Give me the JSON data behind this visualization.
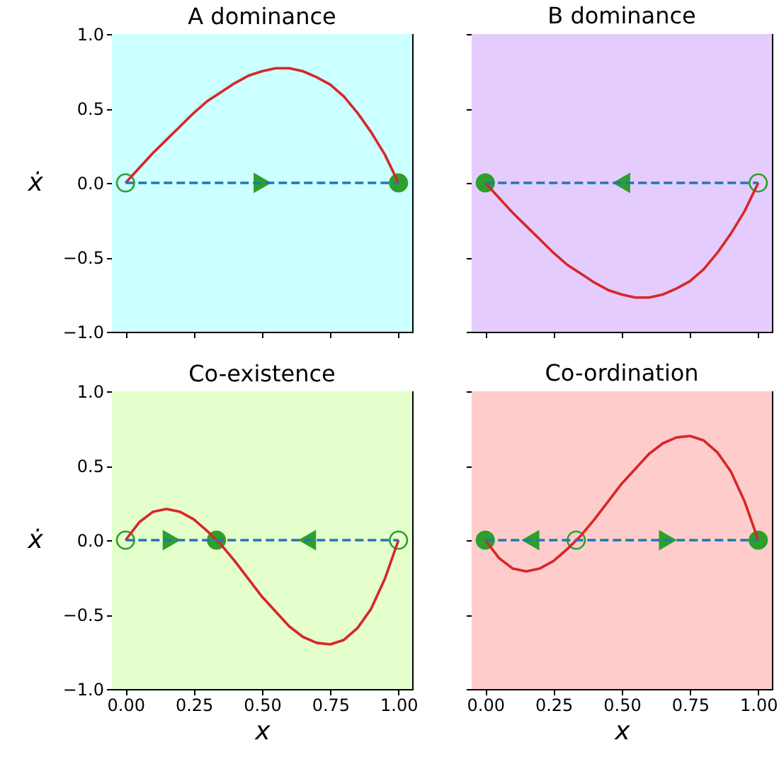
{
  "chart_data": [
    {
      "type": "line",
      "title": "A dominance",
      "ylabel": "ẋ",
      "tick_labels": "y",
      "xlim": [
        -0.05,
        1.05
      ],
      "ylim": [
        -1,
        1
      ],
      "xticks": [
        {
          "value": 0,
          "label": null
        },
        {
          "value": 0.25,
          "label": null
        },
        {
          "value": 0.5,
          "label": null
        },
        {
          "value": 0.75,
          "label": null
        },
        {
          "value": 1,
          "label": null
        }
      ],
      "yticks": [
        {
          "value": -1,
          "label": "−1.0"
        },
        {
          "value": -0.5,
          "label": "−0.5"
        },
        {
          "value": 0,
          "label": "0.0"
        },
        {
          "value": 0.5,
          "label": "0.5"
        },
        {
          "value": 1,
          "label": "1.0"
        }
      ],
      "bands": [
        {
          "axis": "x",
          "from": -0.05,
          "to": 1.05,
          "color": "#ccffff"
        }
      ],
      "x": [
        0,
        0.05,
        0.1,
        0.15,
        0.2,
        0.25,
        0.3,
        0.35,
        0.4,
        0.45,
        0.5,
        0.55,
        0.6,
        0.65,
        0.7,
        0.75,
        0.8,
        0.85,
        0.9,
        0.95,
        1
      ],
      "series": [
        {
          "type": "line",
          "color": "#d62728",
          "line_style": "solid",
          "values": [
            0,
            0.1,
            0.2,
            0.29,
            0.38,
            0.47,
            0.55,
            0.61,
            0.67,
            0.72,
            0.75,
            0.77,
            0.77,
            0.75,
            0.71,
            0.66,
            0.58,
            0.47,
            0.34,
            0.19,
            0
          ]
        },
        {
          "type": "line",
          "color": "#1f77b4",
          "line_style": "dashed",
          "x": [
            0,
            1
          ],
          "values": [
            0,
            0
          ]
        },
        {
          "type": "scatter",
          "marker": "circle",
          "color": "#2ca02c",
          "x": [
            0,
            1
          ],
          "values": [
            0,
            0
          ]
        },
        {
          "type": "scatter",
          "marker": "triangle",
          "color": "#2ca02c",
          "x": [
            0.5
          ],
          "values": [
            0
          ]
        }
      ]
    },
    {
      "type": "line",
      "title": "B dominance",
      "tick_labels": false,
      "xlim": [
        -0.05,
        1.05
      ],
      "ylim": [
        -1,
        1
      ],
      "xticks": [
        {
          "value": 0,
          "label": null
        },
        {
          "value": 0.25,
          "label": null
        },
        {
          "value": 0.5,
          "label": null
        },
        {
          "value": 0.75,
          "label": null
        },
        {
          "value": 1,
          "label": null
        }
      ],
      "yticks": [
        {
          "value": -1,
          "label": null
        },
        {
          "value": -0.5,
          "label": null
        },
        {
          "value": 0,
          "label": null
        },
        {
          "value": 0.5,
          "label": null
        },
        {
          "value": 1,
          "label": null
        }
      ],
      "bands": [
        {
          "axis": "x",
          "from": -0.05,
          "to": 1.05,
          "color": "#e5ccff"
        }
      ],
      "x": [
        0,
        0.05,
        0.1,
        0.15,
        0.2,
        0.25,
        0.3,
        0.35,
        0.4,
        0.45,
        0.5,
        0.55,
        0.6,
        0.65,
        0.7,
        0.75,
        0.8,
        0.85,
        0.9,
        0.95,
        1
      ],
      "series": [
        {
          "type": "line",
          "color": "#d62728",
          "line_style": "solid",
          "values": [
            0,
            -0.1,
            -0.2,
            -0.29,
            -0.38,
            -0.47,
            -0.55,
            -0.61,
            -0.67,
            -0.72,
            -0.75,
            -0.77,
            -0.77,
            -0.75,
            -0.71,
            -0.66,
            -0.58,
            -0.47,
            -0.34,
            -0.19,
            0
          ]
        },
        {
          "type": "line",
          "color": "#1f77b4",
          "line_style": "dashed",
          "x": [
            0,
            1
          ],
          "values": [
            0,
            0
          ]
        },
        {
          "type": "scatter",
          "marker": "circle",
          "color": "#2ca02c",
          "x": [
            0,
            1
          ],
          "values": [
            0,
            0
          ]
        },
        {
          "type": "scatter",
          "marker": "triangle",
          "color": "#2ca02c",
          "x": [
            0.5
          ],
          "values": [
            0
          ]
        }
      ]
    },
    {
      "type": "line",
      "title": "Co-existence",
      "xlabel": "x",
      "ylabel": "ẋ",
      "xlim": [
        -0.05,
        1.05
      ],
      "ylim": [
        -1,
        1
      ],
      "xticks": [
        {
          "value": 0,
          "label": "0.00"
        },
        {
          "value": 0.25,
          "label": "0.25"
        },
        {
          "value": 0.5,
          "label": "0.50"
        },
        {
          "value": 0.75,
          "label": "0.75"
        },
        {
          "value": 1,
          "label": "1.00"
        }
      ],
      "yticks": [
        {
          "value": -1,
          "label": "−1.0"
        },
        {
          "value": -0.5,
          "label": "−0.5"
        },
        {
          "value": 0,
          "label": "0.0"
        },
        {
          "value": 0.5,
          "label": "0.5"
        },
        {
          "value": 1,
          "label": "1.0"
        }
      ],
      "bands": [
        {
          "axis": "x",
          "from": -0.05,
          "to": 1.05,
          "color": "#e5ffcc"
        }
      ],
      "x": [
        0,
        0.05,
        0.1,
        0.15,
        0.2,
        0.25,
        0.3,
        0.35,
        0.4,
        0.45,
        0.5,
        0.55,
        0.6,
        0.65,
        0.7,
        0.75,
        0.8,
        0.85,
        0.9,
        0.95,
        1
      ],
      "series": [
        {
          "type": "line",
          "color": "#d62728",
          "line_style": "solid",
          "values": [
            0,
            0.12,
            0.19,
            0.21,
            0.19,
            0.14,
            0.06,
            -0.03,
            -0.14,
            -0.26,
            -0.38,
            -0.48,
            -0.58,
            -0.65,
            -0.69,
            -0.7,
            -0.67,
            -0.59,
            -0.46,
            -0.26,
            0
          ]
        },
        {
          "type": "line",
          "color": "#1f77b4",
          "line_style": "dashed",
          "x": [
            0,
            1
          ],
          "values": [
            0,
            0
          ]
        },
        {
          "type": "scatter",
          "marker": "circle",
          "color": "#2ca02c",
          "x": [
            0,
            0.333,
            1
          ],
          "values": [
            0,
            0,
            0
          ]
        },
        {
          "type": "scatter",
          "marker": "triangle",
          "color": "#2ca02c",
          "x": [
            0.167,
            0.667
          ],
          "values": [
            0,
            0
          ]
        }
      ]
    },
    {
      "type": "line",
      "title": "Co-ordination",
      "xlabel": "x",
      "tick_labels": "x",
      "xlim": [
        -0.05,
        1.05
      ],
      "ylim": [
        -1,
        1
      ],
      "xticks": [
        {
          "value": 0,
          "label": "0.00"
        },
        {
          "value": 0.25,
          "label": "0.25"
        },
        {
          "value": 0.5,
          "label": "0.50"
        },
        {
          "value": 0.75,
          "label": "0.75"
        },
        {
          "value": 1,
          "label": "1.00"
        }
      ],
      "yticks": [
        {
          "value": -1,
          "label": null
        },
        {
          "value": -0.5,
          "label": null
        },
        {
          "value": 0,
          "label": null
        },
        {
          "value": 0.5,
          "label": null
        },
        {
          "value": 1,
          "label": null
        }
      ],
      "bands": [
        {
          "axis": "x",
          "from": -0.05,
          "to": 1.05,
          "color": "#ffcccc"
        }
      ],
      "x": [
        0,
        0.05,
        0.1,
        0.15,
        0.2,
        0.25,
        0.3,
        0.35,
        0.4,
        0.45,
        0.5,
        0.55,
        0.6,
        0.65,
        0.7,
        0.75,
        0.8,
        0.85,
        0.9,
        0.95,
        1
      ],
      "series": [
        {
          "type": "line",
          "color": "#d62728",
          "line_style": "solid",
          "values": [
            0,
            -0.12,
            -0.19,
            -0.21,
            -0.19,
            -0.14,
            -0.06,
            0.03,
            0.14,
            0.26,
            0.38,
            0.48,
            0.58,
            0.65,
            0.69,
            0.7,
            0.67,
            0.59,
            0.46,
            0.26,
            0
          ]
        },
        {
          "type": "line",
          "color": "#1f77b4",
          "line_style": "dashed",
          "x": [
            0,
            1
          ],
          "values": [
            0,
            0
          ]
        },
        {
          "type": "scatter",
          "marker": "circle",
          "color": "#2ca02c",
          "x": [
            0,
            0.333,
            1
          ],
          "values": [
            0,
            0,
            0
          ]
        },
        {
          "type": "scatter",
          "marker": "triangle",
          "color": "#2ca02c",
          "x": [
            0.167,
            0.667
          ],
          "values": [
            0,
            0
          ]
        }
      ]
    }
  ]
}
